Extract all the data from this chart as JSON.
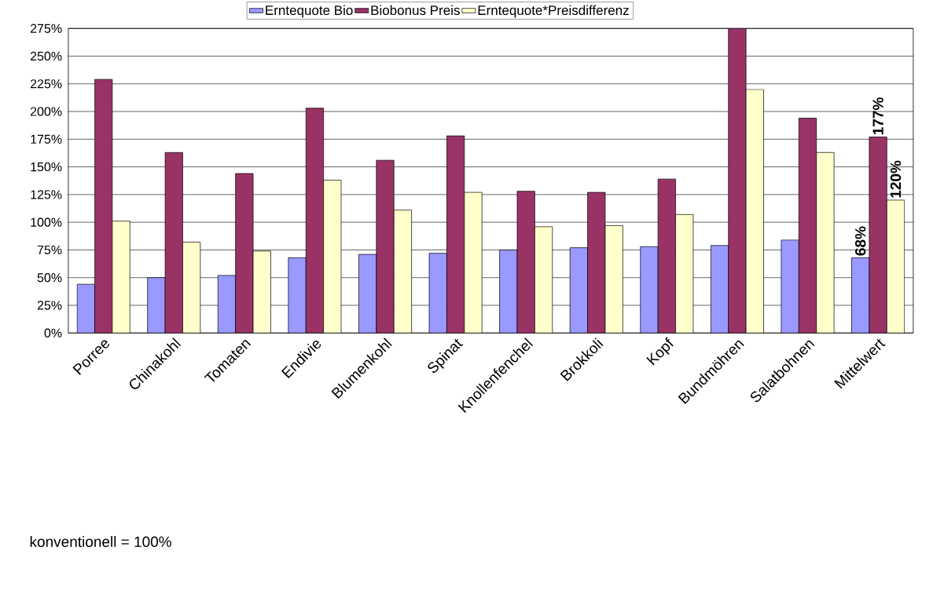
{
  "chart_data": {
    "type": "bar",
    "categories": [
      "Porree",
      "Chinakohl",
      "Tomaten",
      "Endivie",
      "Blumenkohl",
      "Spinat",
      "Knollenfenchel",
      "Brokkoli",
      "Kopf",
      "Bundmöhren",
      "Salatbohnen",
      "Mittelwert"
    ],
    "series": [
      {
        "name": "Erntequote Bio",
        "color": "#9999ff",
        "values": [
          44,
          50,
          52,
          68,
          71,
          72,
          75,
          77,
          78,
          79,
          84,
          68
        ],
        "value_labels": [
          null,
          null,
          null,
          null,
          null,
          null,
          null,
          null,
          null,
          null,
          null,
          "68%"
        ]
      },
      {
        "name": "Biobonus Preis",
        "color": "#993366",
        "values": [
          229,
          163,
          144,
          203,
          156,
          178,
          128,
          127,
          139,
          275,
          194,
          177
        ],
        "value_labels": [
          null,
          null,
          null,
          null,
          null,
          null,
          null,
          null,
          null,
          null,
          null,
          "177%"
        ]
      },
      {
        "name": "Erntequote*Preisdifferenz",
        "color": "#ffffcc",
        "values": [
          101,
          82,
          74,
          138,
          111,
          127,
          96,
          97,
          107,
          220,
          163,
          120
        ],
        "value_labels": [
          null,
          null,
          null,
          null,
          null,
          null,
          null,
          null,
          null,
          null,
          null,
          "120%"
        ]
      }
    ],
    "ylim": [
      0,
      275
    ],
    "yticks": [
      {
        "value": 0,
        "label": "0%"
      },
      {
        "value": 25,
        "label": "25%"
      },
      {
        "value": 50,
        "label": "50%"
      },
      {
        "value": 75,
        "label": "75%"
      },
      {
        "value": 100,
        "label": "100%"
      },
      {
        "value": 125,
        "label": "125%"
      },
      {
        "value": 150,
        "label": "150%"
      },
      {
        "value": 175,
        "label": "175%"
      },
      {
        "value": 200,
        "label": "200%"
      },
      {
        "value": 225,
        "label": "225%"
      },
      {
        "value": 250,
        "label": "250%"
      },
      {
        "value": 275,
        "label": "275%"
      }
    ],
    "grid": "y",
    "legend": "top",
    "annotations": [
      "konventionell  = 100%"
    ]
  }
}
